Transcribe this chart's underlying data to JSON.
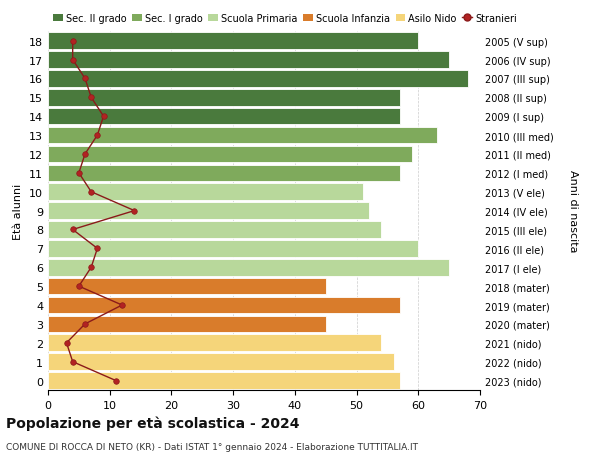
{
  "ages": [
    18,
    17,
    16,
    15,
    14,
    13,
    12,
    11,
    10,
    9,
    8,
    7,
    6,
    5,
    4,
    3,
    2,
    1,
    0
  ],
  "right_labels": [
    "2005 (V sup)",
    "2006 (IV sup)",
    "2007 (III sup)",
    "2008 (II sup)",
    "2009 (I sup)",
    "2010 (III med)",
    "2011 (II med)",
    "2012 (I med)",
    "2013 (V ele)",
    "2014 (IV ele)",
    "2015 (III ele)",
    "2016 (II ele)",
    "2017 (I ele)",
    "2018 (mater)",
    "2019 (mater)",
    "2020 (mater)",
    "2021 (nido)",
    "2022 (nido)",
    "2023 (nido)"
  ],
  "bar_values": [
    60,
    65,
    68,
    57,
    57,
    63,
    59,
    57,
    51,
    52,
    54,
    60,
    65,
    45,
    57,
    45,
    54,
    56,
    57
  ],
  "bar_colors": [
    "#4a7a3d",
    "#4a7a3d",
    "#4a7a3d",
    "#4a7a3d",
    "#4a7a3d",
    "#7faa5c",
    "#7faa5c",
    "#7faa5c",
    "#b8d89b",
    "#b8d89b",
    "#b8d89b",
    "#b8d89b",
    "#b8d89b",
    "#d97c2b",
    "#d97c2b",
    "#d97c2b",
    "#f5d57a",
    "#f5d57a",
    "#f5d57a"
  ],
  "stranieri_values": [
    4,
    4,
    6,
    7,
    9,
    8,
    6,
    5,
    7,
    14,
    4,
    8,
    7,
    5,
    12,
    6,
    3,
    4,
    11
  ],
  "legend_labels": [
    "Sec. II grado",
    "Sec. I grado",
    "Scuola Primaria",
    "Scuola Infanzia",
    "Asilo Nido",
    "Stranieri"
  ],
  "legend_colors": [
    "#4a7a3d",
    "#7faa5c",
    "#b8d89b",
    "#d97c2b",
    "#f5d57a",
    "#b22222"
  ],
  "ylabel_left": "Età alunni",
  "ylabel_right": "Anni di nascita",
  "title": "Popolazione per età scolastica - 2024",
  "subtitle": "COMUNE DI ROCCA DI NETO (KR) - Dati ISTAT 1° gennaio 2024 - Elaborazione TUTTITALIA.IT",
  "xlim": [
    0,
    70
  ],
  "xticks": [
    0,
    10,
    20,
    30,
    40,
    50,
    60,
    70
  ],
  "background_color": "#ffffff",
  "grid_color": "#cccccc"
}
